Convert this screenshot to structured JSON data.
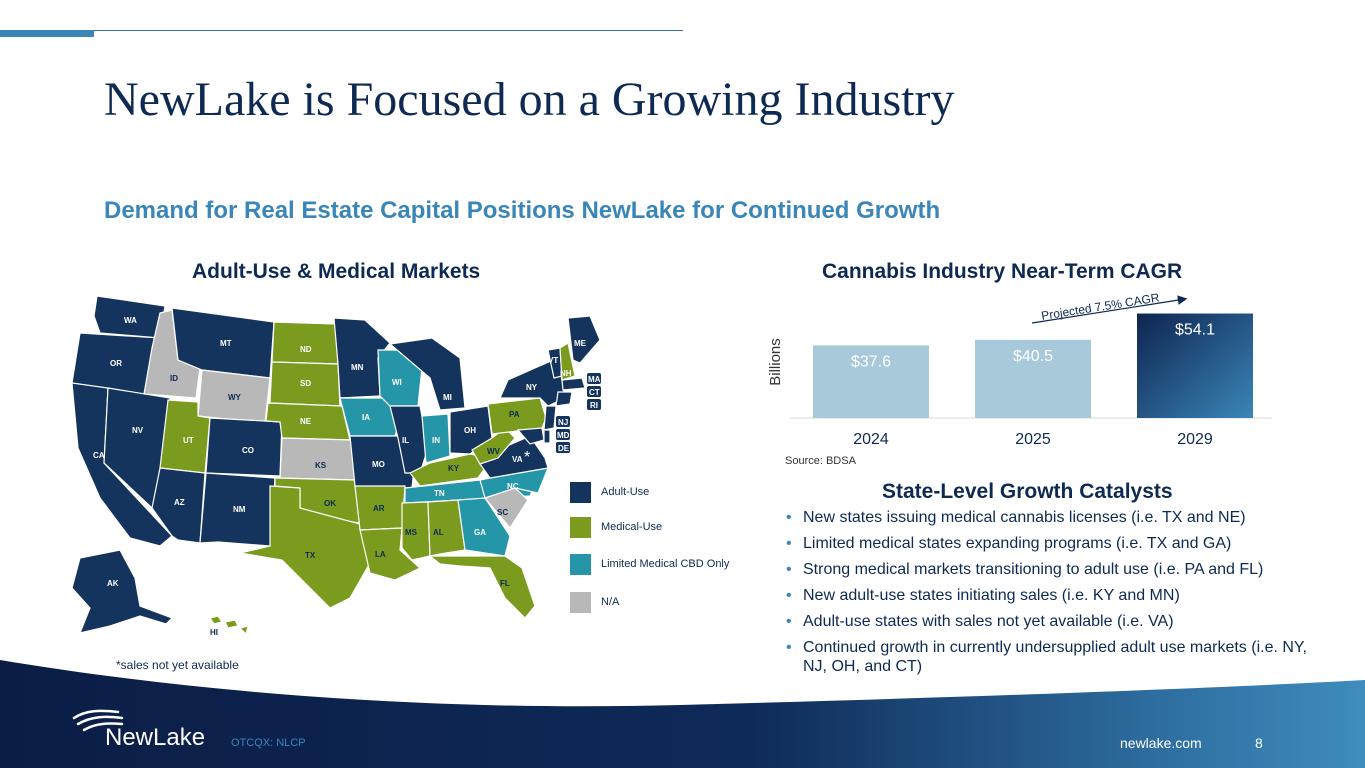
{
  "header": {
    "title": "NewLake is Focused on a Growing Industry",
    "subtitle": "Demand for Real Estate Capital Positions NewLake for Continued Growth"
  },
  "map_section": {
    "title": "Adult-Use & Medical Markets",
    "footnote": "*sales not yet available",
    "asterisk": "*",
    "legend": [
      {
        "label": "Adult-Use",
        "color": "#14345e"
      },
      {
        "label": "Medical-Use",
        "color": "#7a9b1e"
      },
      {
        "label": "Limited Medical CBD Only",
        "color": "#2596a8"
      },
      {
        "label": "N/A",
        "color": "#b8b8b8"
      }
    ],
    "states": {
      "WA": "WA",
      "OR": "OR",
      "CA": "CA",
      "NV": "NV",
      "ID": "ID",
      "MT": "MT",
      "WY": "WY",
      "UT": "UT",
      "AZ": "AZ",
      "CO": "CO",
      "NM": "NM",
      "ND": "ND",
      "SD": "SD",
      "NE": "NE",
      "KS": "KS",
      "OK": "OK",
      "TX": "TX",
      "MN": "MN",
      "IA": "IA",
      "MO": "MO",
      "AR": "AR",
      "LA": "LA",
      "WI": "WI",
      "IL": "IL",
      "MI": "MI",
      "IN": "IN",
      "OH": "OH",
      "KY": "KY",
      "TN": "TN",
      "MS": "MS",
      "AL": "AL",
      "GA": "GA",
      "FL": "FL",
      "SC": "SC",
      "NC": "NC",
      "VA": "VA",
      "WV": "WV",
      "PA": "PA",
      "NY": "NY",
      "VT": "VT",
      "NH": "NH",
      "ME": "ME",
      "MA": "MA",
      "CT": "CT",
      "RI": "RI",
      "NJ": "NJ",
      "MD": "MD",
      "DE": "DE",
      "AK": "AK",
      "HI": "HI"
    }
  },
  "chart_data": {
    "type": "bar",
    "title": "Cannabis Industry Near-Term CAGR",
    "categories": [
      "2024",
      "2025",
      "2029"
    ],
    "values": [
      37.6,
      40.5,
      54.1
    ],
    "value_labels": [
      "$37.6",
      "$40.5",
      "$54.1"
    ],
    "ylabel": "Billions",
    "xlabel": "",
    "ylim": [
      0,
      58
    ],
    "annotation": "Projected 7.5% CAGR",
    "source": "Source: BDSA",
    "colors": [
      "#a7c9d9",
      "#a7c9d9",
      "#14345e"
    ]
  },
  "catalysts": {
    "title": "State-Level Growth Catalysts",
    "items": [
      "New states issuing medical cannabis licenses (i.e. TX and NE)",
      "Limited medical states expanding programs (i.e. TX and GA)",
      "Strong medical markets transitioning to adult use (i.e. PA and FL)",
      "New adult-use states initiating sales (i.e. KY and MN)",
      "Adult-use states with sales not yet available (i.e. VA)",
      "Continued growth in currently undersupplied adult use markets (i.e. NY, NJ, OH, and CT)"
    ]
  },
  "footer": {
    "logo": "NewLake",
    "ticker": "OTCQX: NLCP",
    "website": "newlake.com",
    "page_number": "8"
  },
  "colors": {
    "navy": "#0e2a52",
    "accent": "#3a86b8",
    "adult": "#14345e",
    "medical": "#7a9b1e",
    "cbd": "#2596a8",
    "na": "#b8b8b8"
  }
}
